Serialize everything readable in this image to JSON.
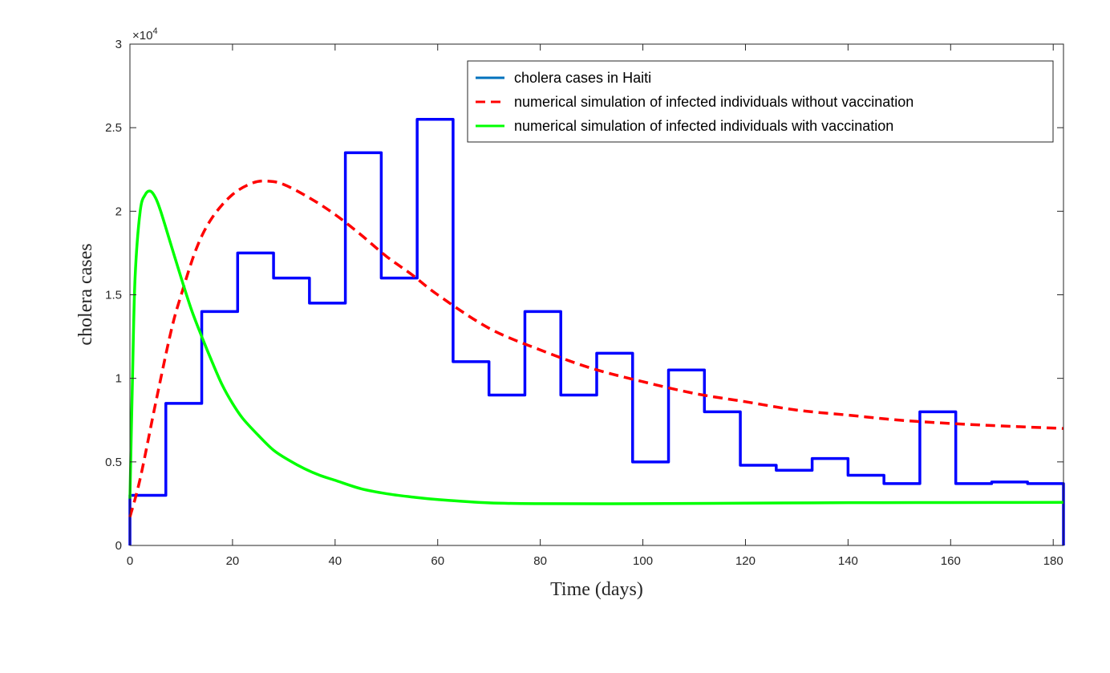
{
  "chart_data": {
    "type": "line",
    "title": "",
    "xlabel": "Time (days)",
    "ylabel": "cholera cases",
    "xlim": [
      0,
      182
    ],
    "ylim": [
      0,
      30000
    ],
    "x_ticks": [
      0,
      20,
      40,
      60,
      80,
      100,
      120,
      140,
      160,
      180
    ],
    "x_tick_labels": [
      "0",
      "20",
      "40",
      "60",
      "80",
      "100",
      "120",
      "140",
      "160",
      "180"
    ],
    "y_ticks": [
      0,
      5000,
      10000,
      15000,
      20000,
      25000,
      30000
    ],
    "y_tick_labels": [
      "0",
      "0.5",
      "1",
      "1.5",
      "2",
      "2.5",
      "3"
    ],
    "y_exponent_label": "×10",
    "y_exponent_power": "4",
    "grid": false,
    "legend_position": "top-right",
    "series": [
      {
        "name": "cholera cases in Haiti",
        "style": "stairs",
        "color": "#0000ff",
        "legend_color": "#0072bd",
        "x": [
          0,
          7,
          14,
          21,
          28,
          35,
          42,
          49,
          56,
          63,
          70,
          77,
          84,
          91,
          98,
          105,
          112,
          119,
          126,
          133,
          140,
          147,
          154,
          161,
          168,
          175,
          182
        ],
        "y": [
          3000,
          8500,
          14000,
          17500,
          16000,
          14500,
          23500,
          16000,
          25500,
          11000,
          9000,
          14000,
          9000,
          11500,
          5000,
          10500,
          8000,
          4800,
          4500,
          5200,
          4200,
          3700,
          8000,
          3700,
          3800,
          3700,
          0
        ]
      },
      {
        "name": "numerical simulation of infected individuals without vaccination",
        "style": "dashed",
        "color": "#ff0000",
        "x": [
          0,
          2,
          5,
          8,
          10,
          13,
          16,
          20,
          24,
          27,
          30,
          35,
          40,
          45,
          50,
          55,
          60,
          70,
          80,
          90,
          100,
          110,
          120,
          130,
          140,
          150,
          160,
          170,
          182
        ],
        "y": [
          1700,
          4000,
          8500,
          12800,
          15000,
          17800,
          19600,
          21000,
          21700,
          21800,
          21600,
          20800,
          19800,
          18600,
          17300,
          16200,
          15000,
          13000,
          11700,
          10600,
          9800,
          9100,
          8600,
          8100,
          7800,
          7500,
          7300,
          7150,
          7000
        ]
      },
      {
        "name": "numerical simulation of infected individuals with vaccination",
        "style": "solid",
        "color": "#00ff00",
        "x": [
          0,
          0.5,
          1,
          2,
          3,
          4,
          5,
          6,
          8,
          10,
          12,
          14,
          16,
          18,
          20,
          22,
          25,
          28,
          31,
          34,
          37,
          40,
          45,
          50,
          55,
          60,
          70,
          80,
          100,
          120,
          140,
          160,
          182
        ],
        "y": [
          2800,
          10000,
          16000,
          20000,
          21000,
          21200,
          20800,
          20000,
          18000,
          16000,
          14100,
          12500,
          11000,
          9600,
          8500,
          7600,
          6600,
          5700,
          5100,
          4600,
          4200,
          3900,
          3400,
          3100,
          2900,
          2750,
          2550,
          2500,
          2500,
          2530,
          2560,
          2570,
          2580
        ]
      }
    ]
  }
}
